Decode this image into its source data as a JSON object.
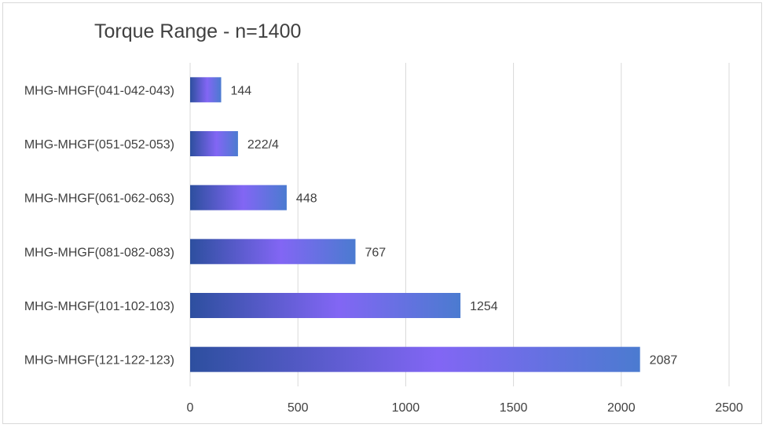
{
  "chart_data": {
    "type": "bar",
    "orientation": "horizontal",
    "title": "Torque Range - n=1400",
    "categories": [
      "MHG-MHGF(041-042-043)",
      "MHG-MHGF(051-052-053)",
      "MHG-MHGF(061-062-063)",
      "MHG-MHGF(081-082-083)",
      "MHG-MHGF(101-102-103)",
      "MHG-MHGF(121-122-123)"
    ],
    "values": [
      144,
      222,
      448,
      767,
      1254,
      2087
    ],
    "data_labels": [
      "144",
      "222/4",
      "448",
      "767",
      "1254",
      "2087"
    ],
    "xlim": [
      0,
      2500
    ],
    "x_ticks": [
      "0",
      "500",
      "1000",
      "1500",
      "2000",
      "2500"
    ],
    "grid": "vertical",
    "xlabel": "",
    "ylabel": "",
    "colors": {
      "bar_dark": "#2f4fa3",
      "bar_light": "#8266f4",
      "bar_end": "#4b7bd0",
      "grid": "#d9d9d9",
      "text": "#404040"
    }
  }
}
